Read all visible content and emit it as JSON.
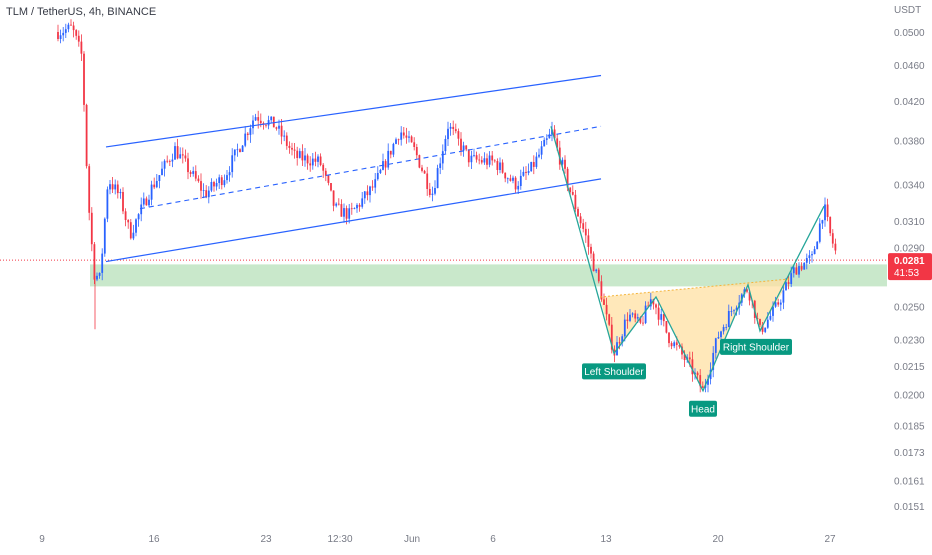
{
  "header": {
    "symbol_line": "TLM / TetherUS, 4h, BINANCE"
  },
  "colors": {
    "up": "#2962ff",
    "down": "#f23645",
    "channel": "#2962ff",
    "zone": "#b7e0b9",
    "pattern_line": "#26a69a",
    "pattern_fill": "#ffe0a3",
    "label_bg": "#089981",
    "price_badge": "#f23645",
    "axis_text": "#787b86"
  },
  "chart_data": {
    "type": "candlestick",
    "title": "TLM / TetherUS, 4h, BINANCE",
    "y_axis": {
      "unit_label": "USDT",
      "scale": "log",
      "ticks": [
        "0.0500",
        "0.0460",
        "0.0420",
        "0.0380",
        "0.0340",
        "0.0310",
        "0.0290",
        "0.0250",
        "0.0230",
        "0.0215",
        "0.0200",
        "0.0185",
        "0.0173",
        "0.0161",
        "0.0151"
      ]
    },
    "x_axis": {
      "ticks": [
        "9",
        "16",
        "23",
        "12:30",
        "Jun",
        "6",
        "13",
        "20",
        "27"
      ]
    },
    "current_price": {
      "value": "0.0281",
      "countdown": "41:53"
    },
    "support_zone": {
      "from": 0.0263,
      "to": 0.0278
    },
    "ohlc_summary": {
      "start_price": 0.05,
      "channel_range": [
        0.031,
        0.04
      ],
      "head_low": 0.0202,
      "left_shoulder_low": 0.0222,
      "right_shoulder_low": 0.0235,
      "last_high": 0.0322,
      "last_close": 0.0281
    },
    "annotations": [
      {
        "text": "Left Shoulder"
      },
      {
        "text": "Head"
      },
      {
        "text": "Right Shoulder"
      }
    ],
    "grid": false,
    "legend": "none"
  }
}
